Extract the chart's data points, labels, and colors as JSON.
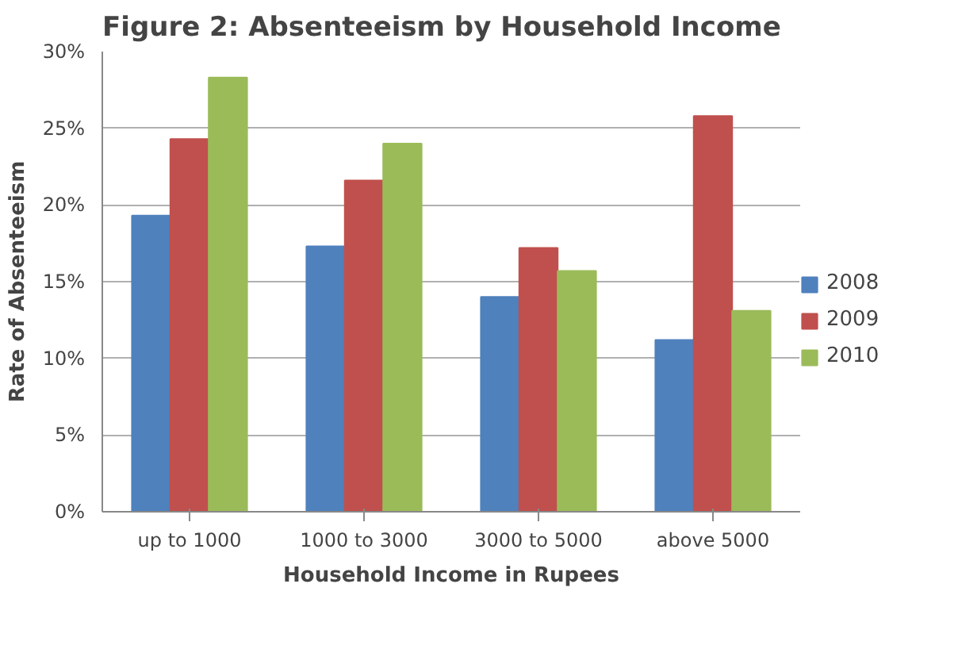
{
  "chart_data": {
    "type": "bar",
    "title": "Figure 2: Absenteeism by Household Income",
    "xlabel": "Household Income in Rupees",
    "ylabel": "Rate of Absenteeism",
    "categories": [
      "up to 1000",
      "1000 to 3000",
      "3000 to 5000",
      "above 5000"
    ],
    "series": [
      {
        "name": "2008",
        "color": "#4f81bd",
        "values": [
          19.3,
          17.3,
          14.0,
          11.2
        ]
      },
      {
        "name": "2009",
        "color": "#c0504d",
        "values": [
          24.3,
          21.6,
          17.2,
          25.8
        ]
      },
      {
        "name": "2010",
        "color": "#9bbb59",
        "values": [
          28.3,
          24.0,
          15.7,
          13.1
        ]
      }
    ],
    "ylim": [
      0,
      30
    ],
    "yticks": [
      {
        "value": 0,
        "label": "0%"
      },
      {
        "value": 5,
        "label": "5%"
      },
      {
        "value": 10,
        "label": "10%"
      },
      {
        "value": 15,
        "label": "15%"
      },
      {
        "value": 20,
        "label": "20%"
      },
      {
        "value": 25,
        "label": "25%"
      },
      {
        "value": 30,
        "label": "30%"
      }
    ],
    "grid": "y",
    "legend": "right"
  }
}
